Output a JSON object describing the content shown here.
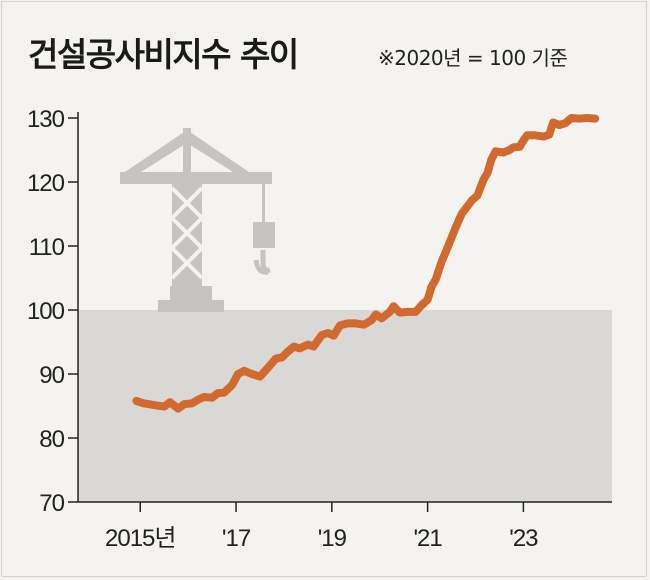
{
  "chart_data": {
    "type": "line",
    "title": "건설공사비지수 추이",
    "subtitle": "※2020년 = 100 기준",
    "xlabel": "",
    "ylabel": "",
    "x_tick_labels": [
      "2015년",
      "'17",
      "'19",
      "'21",
      "'23"
    ],
    "x_ticks": [
      2015,
      2017,
      2019,
      2021,
      2023
    ],
    "xlim": [
      2013.7,
      2024.85
    ],
    "y_ticks": [
      70,
      80,
      90,
      100,
      110,
      120,
      130
    ],
    "ylim": [
      70,
      130
    ],
    "reference_value": 100,
    "grid": false,
    "colors": {
      "line": "#d2692f",
      "shade": "#d9d8d4",
      "icon": "#c5c4c0"
    },
    "series": [
      {
        "values": [
          {
            "x": 2014.92,
            "y": 85.8
          },
          {
            "x": 2015.08,
            "y": 85.4
          },
          {
            "x": 2015.17,
            "y": 85.3
          },
          {
            "x": 2015.33,
            "y": 85.1
          },
          {
            "x": 2015.5,
            "y": 84.9
          },
          {
            "x": 2015.62,
            "y": 85.6
          },
          {
            "x": 2015.79,
            "y": 84.6
          },
          {
            "x": 2015.92,
            "y": 85.3
          },
          {
            "x": 2016.08,
            "y": 85.4
          },
          {
            "x": 2016.21,
            "y": 86.0
          },
          {
            "x": 2016.33,
            "y": 86.4
          },
          {
            "x": 2016.5,
            "y": 86.3
          },
          {
            "x": 2016.62,
            "y": 87.0
          },
          {
            "x": 2016.75,
            "y": 87.1
          },
          {
            "x": 2016.92,
            "y": 88.3
          },
          {
            "x": 2017.04,
            "y": 90.0
          },
          {
            "x": 2017.17,
            "y": 90.5
          },
          {
            "x": 2017.33,
            "y": 90.0
          },
          {
            "x": 2017.5,
            "y": 89.6
          },
          {
            "x": 2017.67,
            "y": 91.0
          },
          {
            "x": 2017.83,
            "y": 92.4
          },
          {
            "x": 2017.96,
            "y": 92.6
          },
          {
            "x": 2018.08,
            "y": 93.5
          },
          {
            "x": 2018.21,
            "y": 94.3
          },
          {
            "x": 2018.33,
            "y": 94.0
          },
          {
            "x": 2018.5,
            "y": 94.6
          },
          {
            "x": 2018.62,
            "y": 94.3
          },
          {
            "x": 2018.79,
            "y": 96.1
          },
          {
            "x": 2018.92,
            "y": 96.4
          },
          {
            "x": 2019.04,
            "y": 96.0
          },
          {
            "x": 2019.17,
            "y": 97.6
          },
          {
            "x": 2019.33,
            "y": 97.9
          },
          {
            "x": 2019.5,
            "y": 97.9
          },
          {
            "x": 2019.67,
            "y": 97.7
          },
          {
            "x": 2019.83,
            "y": 98.4
          },
          {
            "x": 2019.92,
            "y": 99.3
          },
          {
            "x": 2020.04,
            "y": 98.7
          },
          {
            "x": 2020.21,
            "y": 99.7
          },
          {
            "x": 2020.29,
            "y": 100.6
          },
          {
            "x": 2020.42,
            "y": 99.6
          },
          {
            "x": 2020.58,
            "y": 99.7
          },
          {
            "x": 2020.75,
            "y": 99.7
          },
          {
            "x": 2020.88,
            "y": 100.8
          },
          {
            "x": 2021.0,
            "y": 101.6
          },
          {
            "x": 2021.08,
            "y": 103.6
          },
          {
            "x": 2021.17,
            "y": 104.8
          },
          {
            "x": 2021.29,
            "y": 107.5
          },
          {
            "x": 2021.42,
            "y": 109.8
          },
          {
            "x": 2021.58,
            "y": 112.8
          },
          {
            "x": 2021.71,
            "y": 115.0
          },
          {
            "x": 2021.83,
            "y": 116.2
          },
          {
            "x": 2021.92,
            "y": 117.1
          },
          {
            "x": 2022.04,
            "y": 117.9
          },
          {
            "x": 2022.17,
            "y": 120.4
          },
          {
            "x": 2022.25,
            "y": 121.4
          },
          {
            "x": 2022.33,
            "y": 123.5
          },
          {
            "x": 2022.42,
            "y": 124.8
          },
          {
            "x": 2022.58,
            "y": 124.6
          },
          {
            "x": 2022.71,
            "y": 125.0
          },
          {
            "x": 2022.79,
            "y": 125.4
          },
          {
            "x": 2022.92,
            "y": 125.5
          },
          {
            "x": 2023.0,
            "y": 126.5
          },
          {
            "x": 2023.08,
            "y": 127.3
          },
          {
            "x": 2023.25,
            "y": 127.3
          },
          {
            "x": 2023.42,
            "y": 127.1
          },
          {
            "x": 2023.54,
            "y": 127.4
          },
          {
            "x": 2023.62,
            "y": 129.3
          },
          {
            "x": 2023.75,
            "y": 128.9
          },
          {
            "x": 2023.88,
            "y": 129.2
          },
          {
            "x": 2024.0,
            "y": 130.0
          },
          {
            "x": 2024.17,
            "y": 129.9
          },
          {
            "x": 2024.33,
            "y": 130.0
          },
          {
            "x": 2024.5,
            "y": 129.9
          }
        ]
      }
    ]
  }
}
